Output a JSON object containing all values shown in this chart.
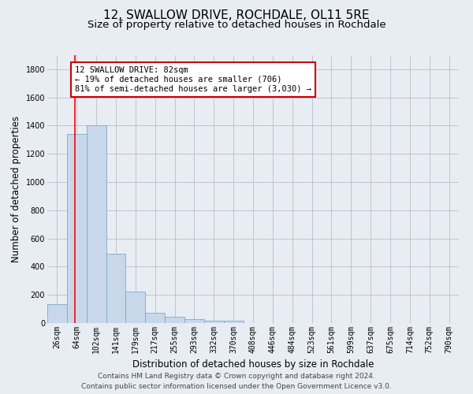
{
  "title": "12, SWALLOW DRIVE, ROCHDALE, OL11 5RE",
  "subtitle": "Size of property relative to detached houses in Rochdale",
  "xlabel": "Distribution of detached houses by size in Rochdale",
  "ylabel": "Number of detached properties",
  "bar_values": [
    135,
    1340,
    1400,
    490,
    225,
    75,
    45,
    28,
    18,
    18,
    0,
    0,
    0,
    0,
    0,
    0,
    0,
    0,
    0,
    0,
    0
  ],
  "x_labels": [
    "26sqm",
    "64sqm",
    "102sqm",
    "141sqm",
    "179sqm",
    "217sqm",
    "255sqm",
    "293sqm",
    "332sqm",
    "370sqm",
    "408sqm",
    "446sqm",
    "484sqm",
    "523sqm",
    "561sqm",
    "599sqm",
    "637sqm",
    "675sqm",
    "714sqm",
    "752sqm",
    "790sqm"
  ],
  "bar_color": "#c8d8ea",
  "bar_edge_color": "#7aaac8",
  "grid_color": "#bbbbcc",
  "bg_color": "#e8edf4",
  "property_line_color": "#ff0000",
  "property_line_x": 1.4,
  "annotation_text": "12 SWALLOW DRIVE: 82sqm\n← 19% of detached houses are smaller (706)\n81% of semi-detached houses are larger (3,030) →",
  "annotation_box_color": "#ffffff",
  "annotation_box_edge": "#cc0000",
  "ylim": [
    0,
    1900
  ],
  "yticks": [
    0,
    200,
    400,
    600,
    800,
    1000,
    1200,
    1400,
    1600,
    1800
  ],
  "footer_line1": "Contains HM Land Registry data © Crown copyright and database right 2024.",
  "footer_line2": "Contains public sector information licensed under the Open Government Licence v3.0.",
  "title_fontsize": 11,
  "subtitle_fontsize": 9.5,
  "axis_label_fontsize": 8.5,
  "tick_fontsize": 7,
  "annotation_fontsize": 7.5,
  "footer_fontsize": 6.5
}
